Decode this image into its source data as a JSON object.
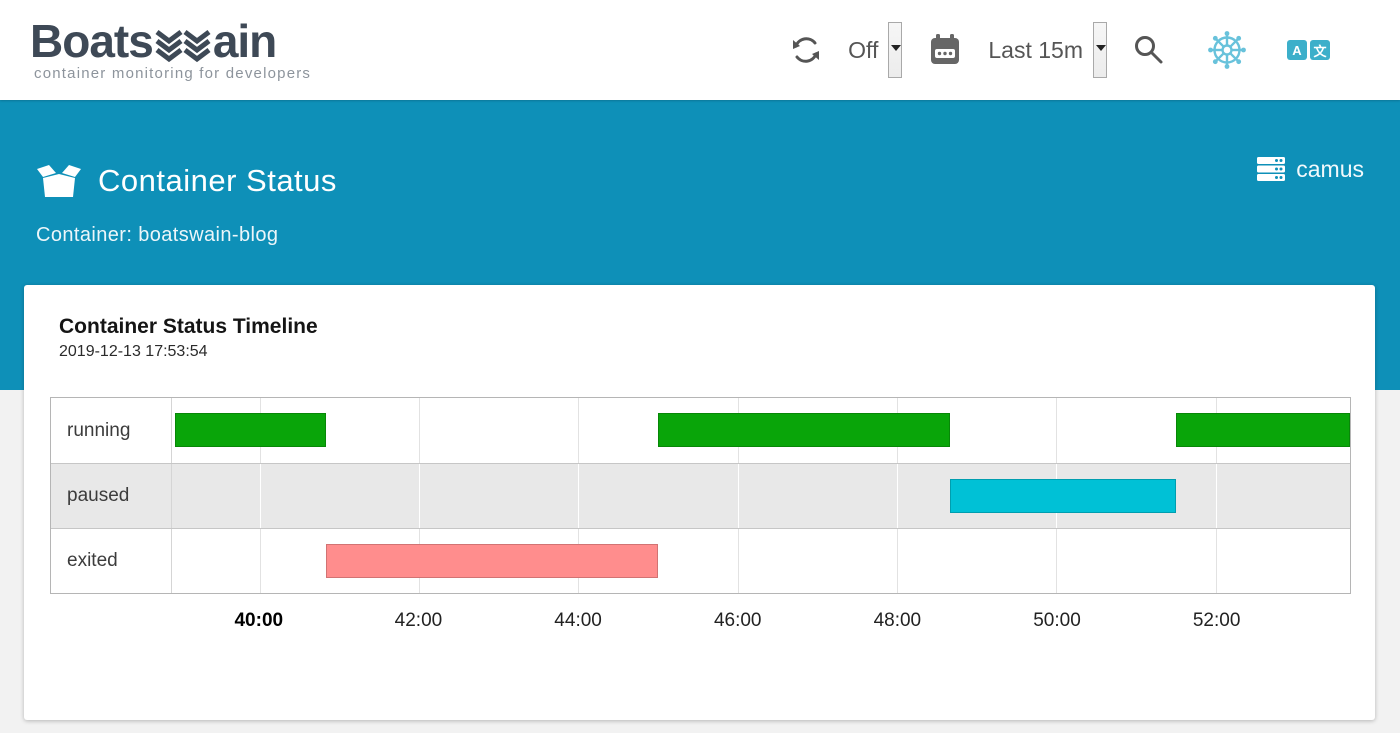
{
  "header": {
    "logo": {
      "text_before": "Boats",
      "text_after": "ain",
      "tagline": "container monitoring for developers"
    },
    "refresh_select": {
      "value": "Off"
    },
    "time_range_select": {
      "value": "Last 15m"
    },
    "icons": {
      "refresh": "refresh-icon",
      "calendar": "calendar-icon",
      "search": "search-icon",
      "kubernetes": "kubernetes-helm-icon",
      "translate_left_glyph": "A",
      "translate_right_glyph": "文"
    }
  },
  "hero": {
    "title": "Container Status",
    "subtitle": "Container: boatswain-blog",
    "host_name": "camus"
  },
  "card": {
    "title": "Container Status Timeline",
    "timestamp": "2019-12-13 17:53:54"
  },
  "colors": {
    "hero_teal": "#0e90b8",
    "running_green": "#09a509",
    "paused_cyan": "#00c1d6",
    "exited_salmon": "#ff8d8d",
    "kubernetes_icon": "#68c2db",
    "translate_icon": "#3cafca"
  },
  "chart_data": {
    "type": "timeline",
    "title": "Container Status Timeline",
    "timestamp": "2019-12-13 17:53:54",
    "x_axis": {
      "min": "38:54",
      "max": "53:41",
      "ticks": [
        {
          "label": "40:00",
          "bold": true
        },
        {
          "label": "42:00",
          "bold": false
        },
        {
          "label": "44:00",
          "bold": false
        },
        {
          "label": "46:00",
          "bold": false
        },
        {
          "label": "48:00",
          "bold": false
        },
        {
          "label": "50:00",
          "bold": false
        },
        {
          "label": "52:00",
          "bold": false
        }
      ]
    },
    "rows": [
      {
        "label": "running",
        "color": "#09a509",
        "segments": [
          {
            "start": "38:56",
            "end": "40:50"
          },
          {
            "start": "45:00",
            "end": "48:40"
          },
          {
            "start": "51:30",
            "end": "53:41"
          }
        ]
      },
      {
        "label": "paused",
        "color": "#00c1d6",
        "segments": [
          {
            "start": "48:40",
            "end": "51:30"
          }
        ]
      },
      {
        "label": "exited",
        "color": "#ff8d8d",
        "segments": [
          {
            "start": "40:50",
            "end": "45:00"
          }
        ]
      }
    ]
  }
}
